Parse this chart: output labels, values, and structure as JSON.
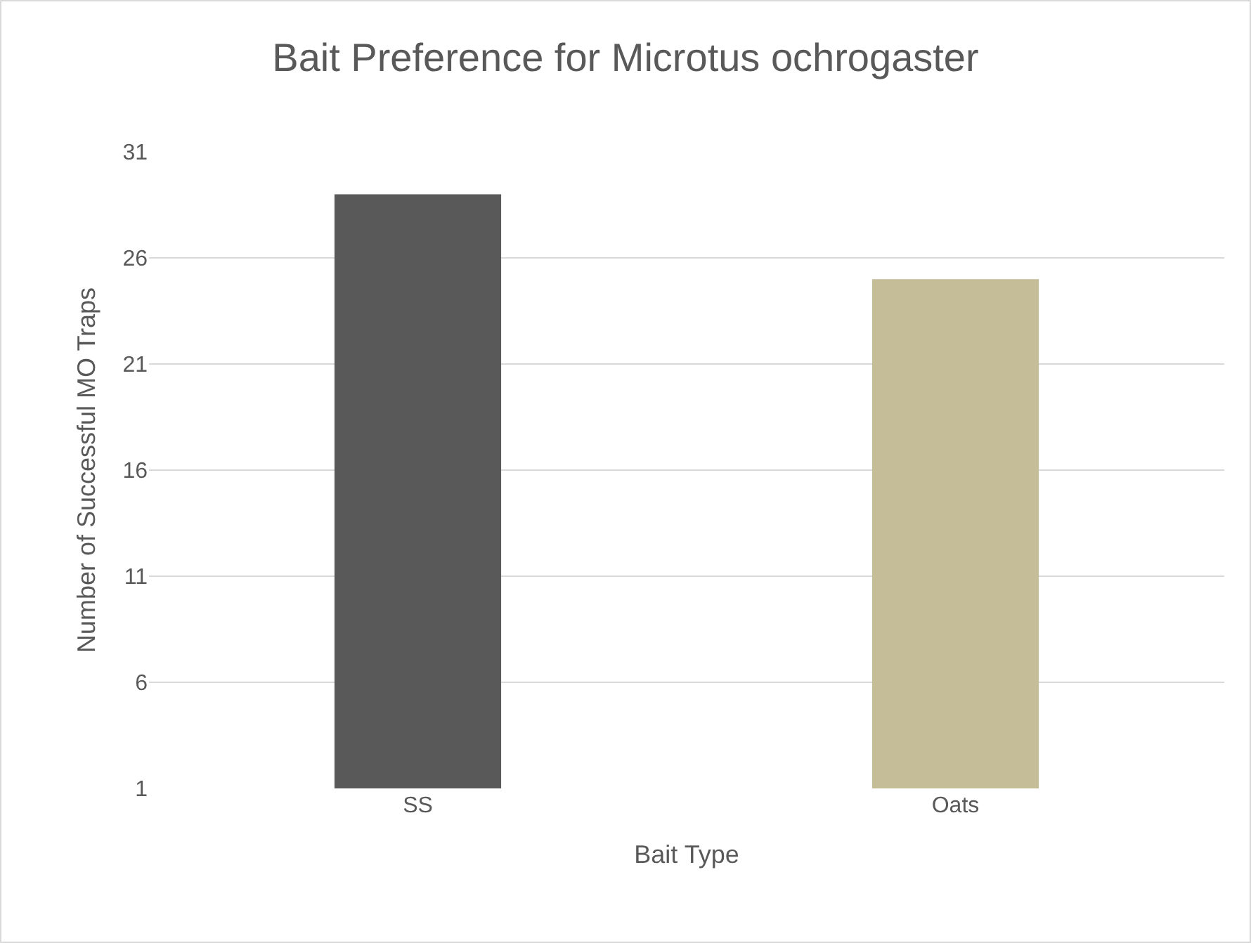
{
  "chart_data": {
    "type": "bar",
    "title": "Bait Preference for Microtus ochrogaster",
    "xlabel": "Bait Type",
    "ylabel": "Number of Successful MO Traps",
    "categories": [
      "SS",
      "Oats"
    ],
    "values": [
      29,
      25
    ],
    "colors": [
      "#595959",
      "#c4bd97"
    ],
    "ylim": [
      1,
      31
    ],
    "yticks": [
      1,
      6,
      11,
      16,
      21,
      26,
      31
    ],
    "grid": "y"
  }
}
